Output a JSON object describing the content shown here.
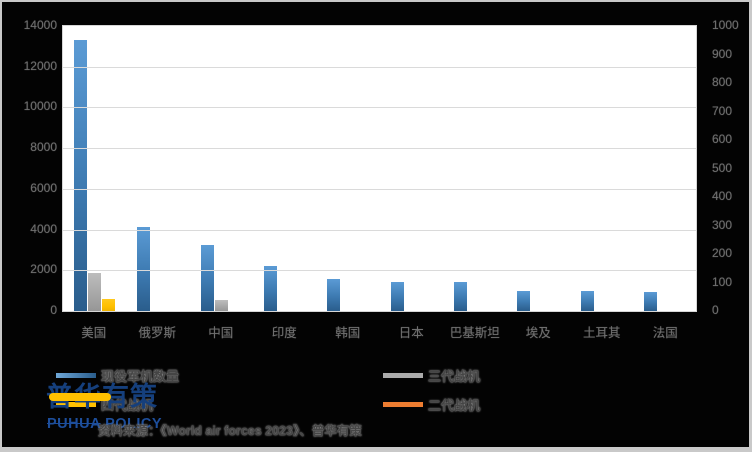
{
  "frame": {
    "background": "#030303",
    "border_color": "#c9c9c9"
  },
  "chart_data": {
    "type": "bar",
    "title": "",
    "categories": [
      "美国",
      "俄罗斯",
      "中国",
      "印度",
      "韩国",
      "日本",
      "巴基斯坦",
      "埃及",
      "土耳其",
      "法国"
    ],
    "series": [
      {
        "name": "现役军机数量",
        "color": "#3d7ab1",
        "axis": "primary",
        "values": [
          13300,
          4150,
          3250,
          2200,
          1550,
          1400,
          1400,
          1000,
          1000,
          950
        ]
      },
      {
        "name": "三代战机",
        "color": "#a6a6a6",
        "axis": "primary",
        "values": [
          1850,
          0,
          550,
          0,
          0,
          0,
          0,
          0,
          0,
          0
        ]
      },
      {
        "name": "四代战机",
        "color": "#ffc000",
        "axis": "primary",
        "values": [
          600,
          0,
          0,
          0,
          0,
          0,
          0,
          0,
          0,
          0
        ]
      },
      {
        "name": "二代战机",
        "color": "#ed7d31",
        "axis": "secondary",
        "values": [
          0,
          0,
          0,
          0,
          0,
          0,
          0,
          0,
          0,
          0
        ]
      }
    ],
    "primary_axis": {
      "min": 0,
      "max": 14000,
      "step": 2000
    },
    "secondary_axis": {
      "min": 0,
      "max": 1000,
      "step": 100
    },
    "grid": true,
    "legend_position": "bottom",
    "xlabel": "",
    "ylabel": ""
  },
  "legend": {
    "items": [
      {
        "label": "现役军机数量",
        "series_index": 0,
        "color": "#3d7ab1"
      },
      {
        "label": "三代战机",
        "series_index": 1,
        "color": "#a6a6a6"
      },
      {
        "label": "四代战机",
        "series_index": 2,
        "color": "#ffc000"
      },
      {
        "label": "二代战机",
        "series_index": 3,
        "color": "#ed7d31"
      }
    ]
  },
  "logo": {
    "cn": "普华有策",
    "en_first": "PUHUA",
    "en_second": "POLICY",
    "accent_color": "#ffc000",
    "text_color": "#1d4e9b"
  },
  "source_line": "资料来源：《World air forces 2023》、普华有策"
}
